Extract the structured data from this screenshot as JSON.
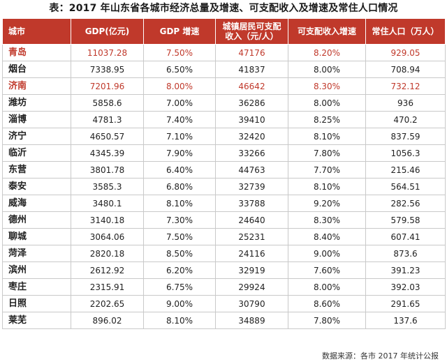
{
  "title": "表：2017 年山东省各城市经济总量及增速、可支配收入及增速及常住人口情况",
  "headers": [
    "城市",
    "GDP(亿元)",
    "GDP 增速",
    "城镇居民可支配收入（元/人）",
    "可支配收入增速",
    "常住人口（万人）"
  ],
  "rows": [
    [
      "青岛",
      "11037.28",
      "7.50%",
      "47176",
      "8.20%",
      "929.05"
    ],
    [
      "烟台",
      "7338.95",
      "6.50%",
      "41837",
      "8.00%",
      "708.94"
    ],
    [
      "济南",
      "7201.96",
      "8.00%",
      "46642",
      "8.30%",
      "732.12"
    ],
    [
      "潍坊",
      "5858.6",
      "7.00%",
      "36286",
      "8.00%",
      "936"
    ],
    [
      "淄博",
      "4781.3",
      "7.40%",
      "39410",
      "8.25%",
      "470.2"
    ],
    [
      "济宁",
      "4650.57",
      "7.10%",
      "32420",
      "8.10%",
      "837.59"
    ],
    [
      "临沂",
      "4345.39",
      "7.90%",
      "33266",
      "7.80%",
      "1056.3"
    ],
    [
      "东营",
      "3801.78",
      "6.40%",
      "44763",
      "7.70%",
      "215.46"
    ],
    [
      "泰安",
      "3585.3",
      "6.80%",
      "32739",
      "8.10%",
      "564.51"
    ],
    [
      "威海",
      "3480.1",
      "8.10%",
      "33788",
      "9.20%",
      "282.56"
    ],
    [
      "德州",
      "3140.18",
      "7.30%",
      "24640",
      "8.30%",
      "579.58"
    ],
    [
      "聊城",
      "3064.06",
      "7.50%",
      "25231",
      "8.40%",
      "607.41"
    ],
    [
      "菏泽",
      "2820.18",
      "8.50%",
      "24116",
      "9.00%",
      "873.6"
    ],
    [
      "滨州",
      "2612.92",
      "6.20%",
      "32919",
      "7.60%",
      "391.23"
    ],
    [
      "枣庄",
      "2315.91",
      "6.75%",
      "29924",
      "8.00%",
      "392.03"
    ],
    [
      "日照",
      "2202.65",
      "9.00%",
      "30790",
      "8.60%",
      "291.65"
    ],
    [
      "莱芜",
      "896.02",
      "8.10%",
      "34889",
      "7.80%",
      "137.6"
    ]
  ],
  "highlighted_cities": [
    "青岛",
    "济南"
  ],
  "source": "数据来源：各市 2017 年统计公报",
  "colors": {
    "header_bg": "#c0392b",
    "highlight_text": "#c0392b"
  }
}
